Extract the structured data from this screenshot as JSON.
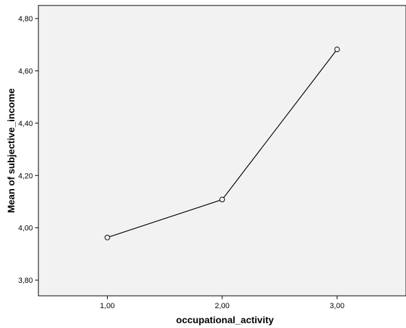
{
  "chart_data": {
    "type": "line",
    "xlabel": "occupational_activity",
    "ylabel": "Mean of subjective_income",
    "x": [
      1,
      2,
      3
    ],
    "x_tick_labels": [
      "1,00",
      "2,00",
      "3,00"
    ],
    "xlim": [
      0.4,
      3.6
    ],
    "y_ticks": [
      3.8,
      4.0,
      4.2,
      4.4,
      4.6,
      4.8
    ],
    "y_tick_labels": [
      "3,80",
      "4,00",
      "4,20",
      "4,40",
      "4,60",
      "4,80"
    ],
    "ylim": [
      3.74,
      4.85
    ],
    "series": [
      {
        "values": [
          3.963,
          4.108,
          4.682
        ]
      }
    ],
    "grid": false,
    "legend": "none",
    "colors": {
      "plot_background": "#f2f2f2",
      "line": "#000000",
      "marker_fill": "#f2f2f2"
    }
  }
}
